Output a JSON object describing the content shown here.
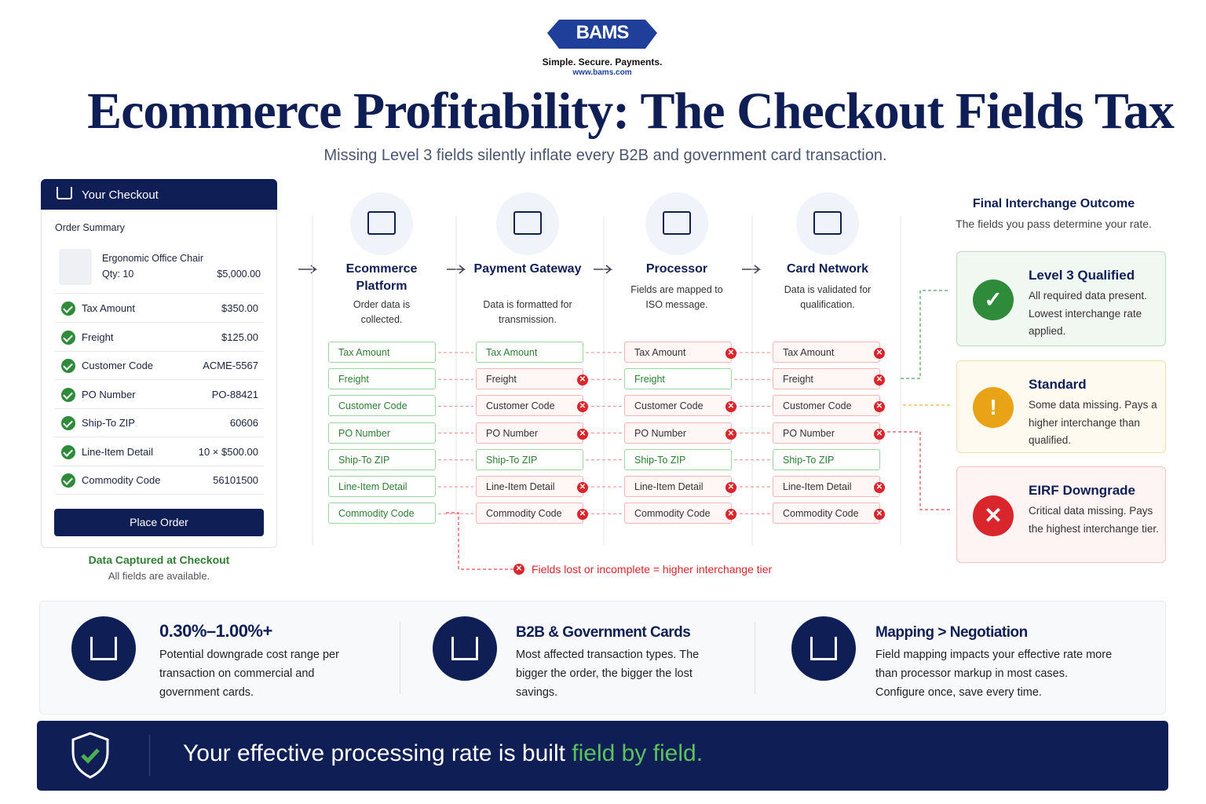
{
  "logo": {
    "brand": "BAMS",
    "tagline": "Simple. Secure. Payments.",
    "url": "www.bams.com"
  },
  "header": {
    "title": "Ecommerce Profitability: The Checkout Fields Tax",
    "subtitle": "Missing Level 3 fields silently inflate every B2B and government card transaction."
  },
  "checkout": {
    "title": "Your Checkout",
    "summary": "Order Summary",
    "product": {
      "name": "Ergonomic Office Chair",
      "qty": "Qty: 10",
      "price": "$5,000.00"
    },
    "fields": [
      {
        "name": "Tax Amount",
        "value": "$350.00"
      },
      {
        "name": "Freight",
        "value": "$125.00"
      },
      {
        "name": "Customer Code",
        "value": "ACME-5567"
      },
      {
        "name": "PO Number",
        "value": "PO-88421"
      },
      {
        "name": "Ship-To ZIP",
        "value": "60606"
      },
      {
        "name": "Line-Item Detail",
        "value": "10 × $500.00"
      },
      {
        "name": "Commodity Code",
        "value": "56101500"
      }
    ],
    "button": "Place Order",
    "caption": "Data Captured at Checkout",
    "note": "All fields are available."
  },
  "stages": [
    {
      "title": "Ecommerce Platform",
      "desc": "Order data is collected.",
      "fields": [
        "Tax Amount",
        "Freight",
        "Customer Code",
        "PO Number",
        "Ship-To ZIP",
        "Line-Item Detail",
        "Commodity Code"
      ],
      "lost": [
        false,
        false,
        false,
        false,
        false,
        false,
        false
      ]
    },
    {
      "title": "Payment Gateway",
      "desc": "Data is formatted for transmission.",
      "fields": [
        "Tax Amount",
        "Freight",
        "Customer Code",
        "PO Number",
        "Ship-To ZIP",
        "Line-Item Detail",
        "Commodity Code"
      ],
      "lost": [
        false,
        true,
        true,
        true,
        false,
        true,
        true
      ]
    },
    {
      "title": "Processor",
      "desc": "Fields are mapped to ISO message.",
      "fields": [
        "Tax Amount",
        "Freight",
        "Customer Code",
        "PO Number",
        "Ship-To ZIP",
        "Line-Item Detail",
        "Commodity Code"
      ],
      "lost": [
        true,
        false,
        true,
        true,
        false,
        true,
        true
      ]
    },
    {
      "title": "Card Network",
      "desc": "Data is validated for qualification.",
      "fields": [
        "Tax Amount",
        "Freight",
        "Customer Code",
        "PO Number",
        "Ship-To ZIP",
        "Line-Item Detail",
        "Commodity Code"
      ],
      "lost": [
        true,
        true,
        true,
        true,
        false,
        true,
        true
      ]
    }
  ],
  "loss_note": "Fields lost or incomplete = higher interchange tier",
  "outcome": {
    "title": "Final Interchange Outcome",
    "subtitle": "The fields you pass determine your rate.",
    "tiers": [
      {
        "name": "Level 3 Qualified",
        "desc": "All required data present. Lowest interchange rate applied."
      },
      {
        "name": "Standard",
        "desc": "Some data missing. Pays a higher interchange than qualified."
      },
      {
        "name": "EIRF Downgrade",
        "desc": "Critical data missing. Pays the highest interchange tier."
      }
    ]
  },
  "stats": [
    {
      "title": "0.30%–1.00%+",
      "desc": "Potential downgrade cost range per transaction on commercial and government cards."
    },
    {
      "title": "B2B & Government Cards",
      "desc": "Most affected transaction types. The bigger the order, the bigger the lost savings."
    },
    {
      "title": "Mapping > Negotiation",
      "desc": "Field mapping impacts your effective rate more than processor markup in most cases. Configure once, save every time."
    }
  ],
  "banner": {
    "text": "Your effective processing rate is built",
    "highlight": "field by field."
  }
}
